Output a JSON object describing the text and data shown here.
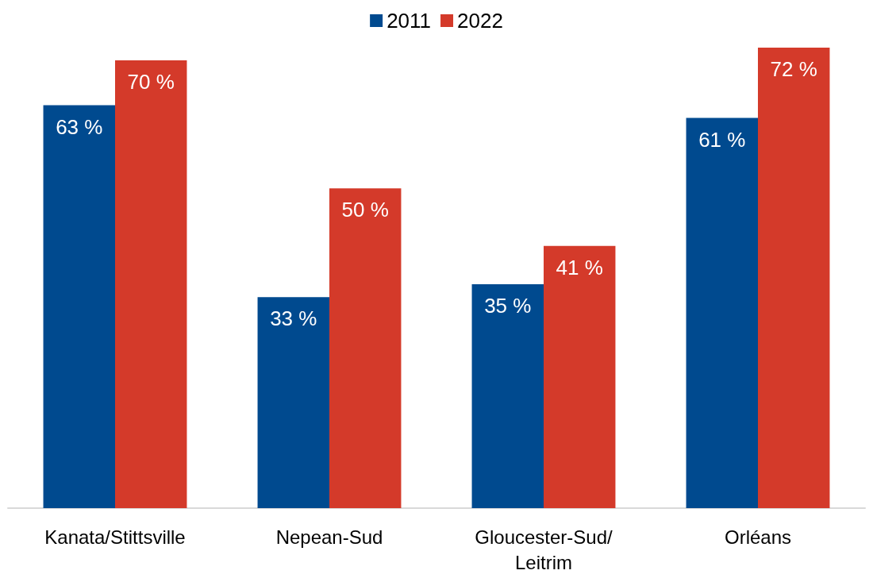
{
  "chart_data": {
    "type": "bar",
    "categories": [
      "Kanata/Stittsville",
      "Nepean-Sud",
      "Gloucester-Sud/Leitrim",
      "Orléans"
    ],
    "series": [
      {
        "name": "2011",
        "color": "#004a8f",
        "values": [
          63,
          33,
          35,
          61
        ],
        "value_labels": [
          "63 %",
          "33 %",
          "35 %",
          "61 %"
        ]
      },
      {
        "name": "2022",
        "color": "#d43a2a",
        "values": [
          70,
          50,
          41,
          72
        ],
        "value_labels": [
          "70 %",
          "50 %",
          "41 %",
          "72 %"
        ]
      }
    ],
    "legend": "top",
    "grid": false
  }
}
